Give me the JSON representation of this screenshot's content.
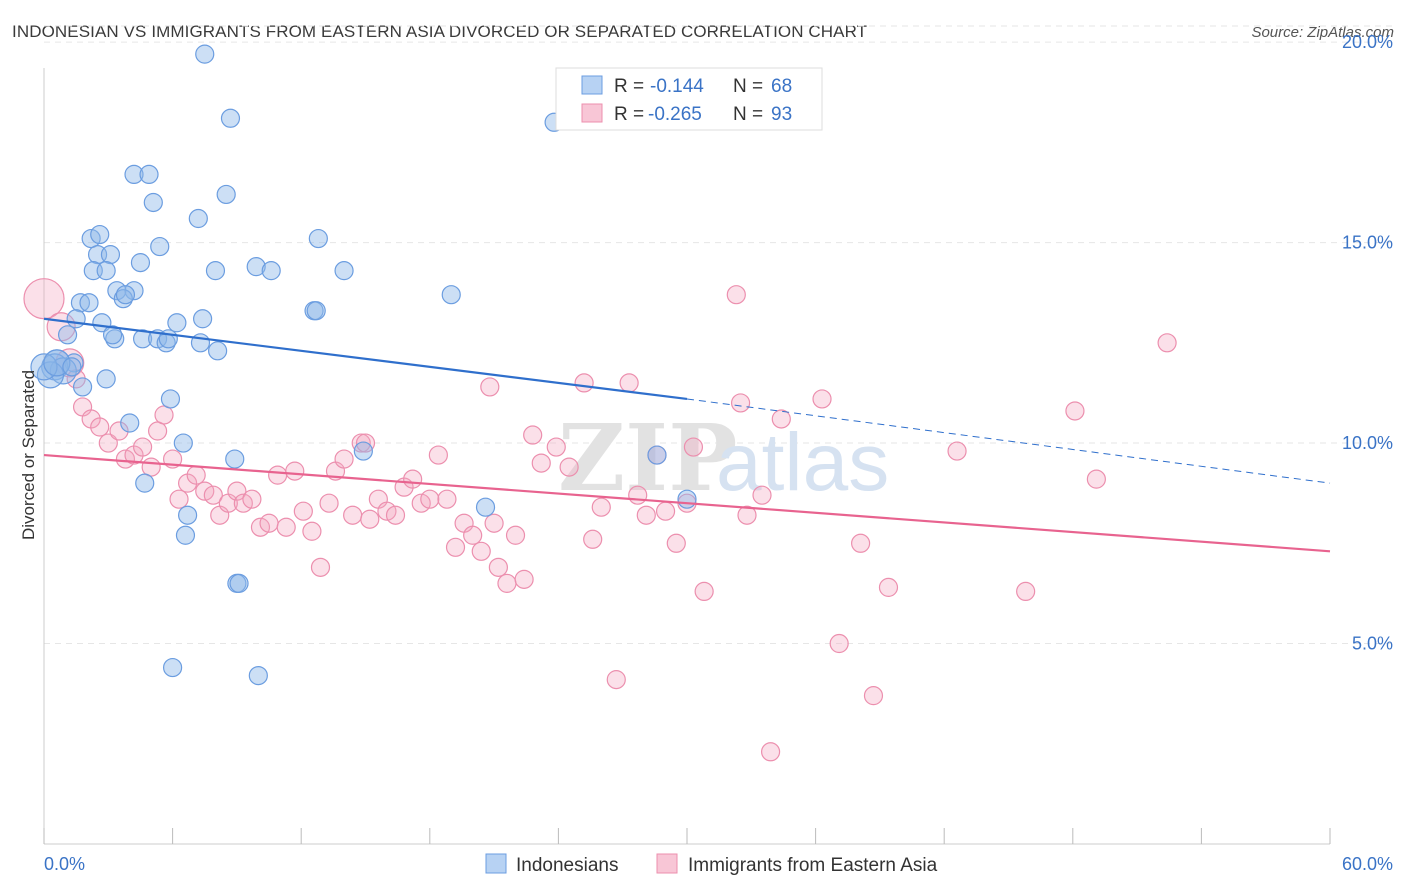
{
  "title": "INDONESIAN VS IMMIGRANTS FROM EASTERN ASIA DIVORCED OR SEPARATED CORRELATION CHART",
  "source": "Source: ZipAtlas.com",
  "watermark": {
    "zip": "ZIP",
    "atlas": "atlas"
  },
  "legend": {
    "r_label": "R =",
    "n_label": "N =",
    "rows": [
      {
        "r": "-0.144",
        "n": "68"
      },
      {
        "r": "-0.265",
        "n": "93"
      }
    ]
  },
  "chart_data": {
    "type": "scatter",
    "ylabel": "Divorced or Separated",
    "x_tick_labels": {
      "min": "0.0%",
      "max": "60.0%"
    },
    "xlim": [
      0,
      60
    ],
    "ylim": [
      0,
      21
    ],
    "y_ticks": [
      {
        "value": 5,
        "label": "5.0%"
      },
      {
        "value": 10,
        "label": "10.0%"
      },
      {
        "value": 15,
        "label": "15.0%"
      },
      {
        "value": 20,
        "label": "20.0%"
      }
    ],
    "grid": "horizontal dashed",
    "legend_placement": "top-center",
    "colors": {
      "blue": "#8fb8e8",
      "blue_line": "#2f6fcc",
      "pink": "#f3a7c0",
      "pink_line": "#e8638f"
    },
    "series": [
      {
        "name": "Indonesians",
        "color": "blue",
        "trend": {
          "x0": 0,
          "y0": 13.1,
          "x1": 30,
          "y1": 11.1,
          "dashed_to_x": 60,
          "dashed_to_y": 9.0
        },
        "points": [
          [
            7.5,
            19.7
          ],
          [
            8.7,
            18.1
          ],
          [
            23.8,
            18.0
          ],
          [
            4.2,
            16.7
          ],
          [
            4.9,
            16.7
          ],
          [
            8.5,
            16.2
          ],
          [
            5.1,
            16.0
          ],
          [
            7.2,
            15.6
          ],
          [
            2.2,
            15.1
          ],
          [
            2.6,
            15.2
          ],
          [
            12.8,
            15.1
          ],
          [
            5.4,
            14.9
          ],
          [
            2.5,
            14.7
          ],
          [
            3.1,
            14.7
          ],
          [
            4.5,
            14.5
          ],
          [
            2.3,
            14.3
          ],
          [
            2.9,
            14.3
          ],
          [
            8.0,
            14.3
          ],
          [
            9.9,
            14.4
          ],
          [
            10.6,
            14.3
          ],
          [
            14.0,
            14.3
          ],
          [
            3.4,
            13.8
          ],
          [
            4.2,
            13.8
          ],
          [
            3.7,
            13.6
          ],
          [
            19.0,
            13.7
          ],
          [
            1.7,
            13.5
          ],
          [
            2.1,
            13.5
          ],
          [
            1.5,
            13.1
          ],
          [
            12.6,
            13.3
          ],
          [
            2.7,
            13.0
          ],
          [
            6.2,
            13.0
          ],
          [
            7.4,
            13.1
          ],
          [
            1.1,
            12.7
          ],
          [
            3.3,
            12.6
          ],
          [
            4.6,
            12.6
          ],
          [
            5.3,
            12.6
          ],
          [
            5.7,
            12.5
          ],
          [
            7.3,
            12.5
          ],
          [
            8.1,
            12.3
          ],
          [
            0.6,
            12.0
          ],
          [
            1.4,
            12.0
          ],
          [
            0.5,
            11.9
          ],
          [
            0.9,
            11.8
          ],
          [
            0.3,
            11.7
          ],
          [
            2.9,
            11.6
          ],
          [
            1.8,
            11.4
          ],
          [
            0.0,
            11.9
          ],
          [
            5.9,
            11.1
          ],
          [
            4.0,
            10.5
          ],
          [
            6.5,
            10.0
          ],
          [
            14.9,
            9.8
          ],
          [
            8.9,
            9.6
          ],
          [
            28.6,
            9.7
          ],
          [
            4.7,
            9.0
          ],
          [
            20.6,
            8.4
          ],
          [
            30.0,
            8.6
          ],
          [
            6.7,
            8.2
          ],
          [
            6.6,
            7.7
          ],
          [
            9.0,
            6.5
          ],
          [
            9.1,
            6.5
          ],
          [
            6.0,
            4.4
          ],
          [
            10.0,
            4.2
          ],
          [
            0.6,
            12.0
          ],
          [
            3.8,
            13.7
          ],
          [
            1.3,
            11.9
          ],
          [
            12.7,
            13.3
          ],
          [
            5.8,
            12.6
          ],
          [
            3.2,
            12.7
          ]
        ]
      },
      {
        "name": "Immigrants from Eastern Asia",
        "color": "pink",
        "trend": {
          "x0": 0,
          "y0": 9.7,
          "x1": 60,
          "y1": 7.3
        },
        "points": [
          [
            0.0,
            13.6
          ],
          [
            0.8,
            12.9
          ],
          [
            1.2,
            12.0
          ],
          [
            1.5,
            11.6
          ],
          [
            1.8,
            10.9
          ],
          [
            2.2,
            10.6
          ],
          [
            2.6,
            10.4
          ],
          [
            3.0,
            10.0
          ],
          [
            3.5,
            10.3
          ],
          [
            3.8,
            9.6
          ],
          [
            4.2,
            9.7
          ],
          [
            4.6,
            9.9
          ],
          [
            5.0,
            9.4
          ],
          [
            5.3,
            10.3
          ],
          [
            5.6,
            10.7
          ],
          [
            6.0,
            9.6
          ],
          [
            6.3,
            8.6
          ],
          [
            6.7,
            9.0
          ],
          [
            7.1,
            9.2
          ],
          [
            7.5,
            8.8
          ],
          [
            7.9,
            8.7
          ],
          [
            8.2,
            8.2
          ],
          [
            8.6,
            8.5
          ],
          [
            9.0,
            8.8
          ],
          [
            9.3,
            8.5
          ],
          [
            9.7,
            8.6
          ],
          [
            10.1,
            7.9
          ],
          [
            10.5,
            8.0
          ],
          [
            10.9,
            9.2
          ],
          [
            11.3,
            7.9
          ],
          [
            11.7,
            9.3
          ],
          [
            12.1,
            8.3
          ],
          [
            12.5,
            7.8
          ],
          [
            12.9,
            6.9
          ],
          [
            13.3,
            8.5
          ],
          [
            13.6,
            9.3
          ],
          [
            14.0,
            9.6
          ],
          [
            14.4,
            8.2
          ],
          [
            14.8,
            10.0
          ],
          [
            15.2,
            8.1
          ],
          [
            15.6,
            8.6
          ],
          [
            16.0,
            8.3
          ],
          [
            16.4,
            8.2
          ],
          [
            16.8,
            8.9
          ],
          [
            17.2,
            9.1
          ],
          [
            17.6,
            8.5
          ],
          [
            18.0,
            8.6
          ],
          [
            18.4,
            9.7
          ],
          [
            18.8,
            8.6
          ],
          [
            19.2,
            7.4
          ],
          [
            19.6,
            8.0
          ],
          [
            20.0,
            7.7
          ],
          [
            20.4,
            7.3
          ],
          [
            20.8,
            11.4
          ],
          [
            21.2,
            6.9
          ],
          [
            21.6,
            6.5
          ],
          [
            22.0,
            7.7
          ],
          [
            22.4,
            6.6
          ],
          [
            22.8,
            10.2
          ],
          [
            23.2,
            9.5
          ],
          [
            23.9,
            9.9
          ],
          [
            24.5,
            9.4
          ],
          [
            25.2,
            11.5
          ],
          [
            25.6,
            7.6
          ],
          [
            26.0,
            8.4
          ],
          [
            26.7,
            4.1
          ],
          [
            27.3,
            11.5
          ],
          [
            27.7,
            8.7
          ],
          [
            28.1,
            8.2
          ],
          [
            28.6,
            9.7
          ],
          [
            29.0,
            8.3
          ],
          [
            29.5,
            7.5
          ],
          [
            30.0,
            8.5
          ],
          [
            30.3,
            9.9
          ],
          [
            30.8,
            6.3
          ],
          [
            32.3,
            13.7
          ],
          [
            32.5,
            11.0
          ],
          [
            32.8,
            8.2
          ],
          [
            33.5,
            8.7
          ],
          [
            33.9,
            2.3
          ],
          [
            34.4,
            10.6
          ],
          [
            36.3,
            11.1
          ],
          [
            37.1,
            5.0
          ],
          [
            38.1,
            7.5
          ],
          [
            38.7,
            3.7
          ],
          [
            39.4,
            6.4
          ],
          [
            42.6,
            9.8
          ],
          [
            45.8,
            6.3
          ],
          [
            48.1,
            10.8
          ],
          [
            49.1,
            9.1
          ],
          [
            52.4,
            12.5
          ],
          [
            15.0,
            10.0
          ],
          [
            21.0,
            8.0
          ]
        ]
      }
    ]
  },
  "bottom_legend": [
    {
      "label": "Indonesians",
      "color": "blue"
    },
    {
      "label": "Immigrants from Eastern Asia",
      "color": "pink"
    }
  ]
}
